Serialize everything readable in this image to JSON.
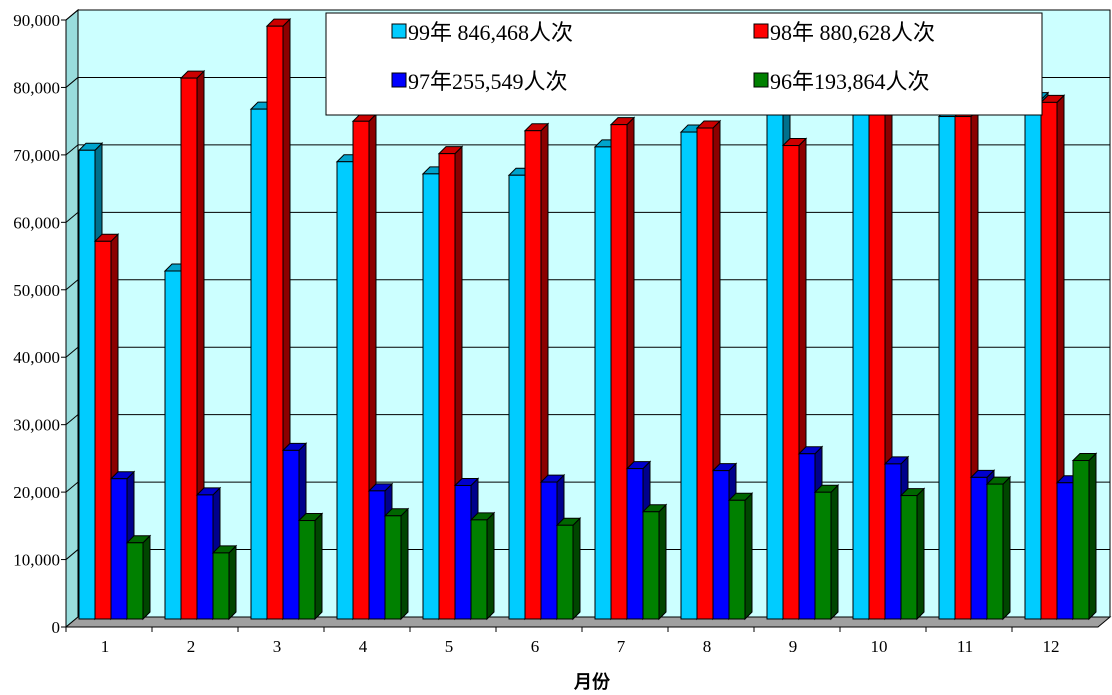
{
  "chart_data": {
    "type": "bar",
    "title": "",
    "xlabel": "月份",
    "ylabel": "",
    "ylim": [
      0,
      90000
    ],
    "yticks": [
      "0",
      "10,000",
      "20,000",
      "30,000",
      "40,000",
      "50,000",
      "60,000",
      "70,000",
      "80,000",
      "90,000"
    ],
    "categories": [
      "1",
      "2",
      "3",
      "4",
      "5",
      "6",
      "7",
      "8",
      "9",
      "10",
      "11",
      "12"
    ],
    "grid": true,
    "legend_position": "top-right",
    "series": [
      {
        "name": "99年 846,468人次",
        "color": "#00CCFF",
        "values": [
          69500,
          51600,
          75600,
          67800,
          66000,
          65800,
          70000,
          72200,
          79000,
          79500,
          74500,
          77000
        ]
      },
      {
        "name": "98年 880,628人次",
        "color": "#FF0000",
        "values": [
          56000,
          80200,
          87900,
          73800,
          69000,
          72400,
          73300,
          72800,
          70200,
          75000,
          74500,
          76600
        ]
      },
      {
        "name": "97年255,549人次",
        "color": "#0000FF",
        "values": [
          20800,
          18400,
          25000,
          19000,
          19800,
          20300,
          22300,
          22000,
          24500,
          23000,
          21000,
          20200
        ]
      },
      {
        "name": "96年193,864人次",
        "color": "#008000",
        "values": [
          11300,
          9800,
          14600,
          15300,
          14700,
          13900,
          15900,
          17600,
          18800,
          18300,
          20000,
          23500
        ]
      }
    ]
  }
}
